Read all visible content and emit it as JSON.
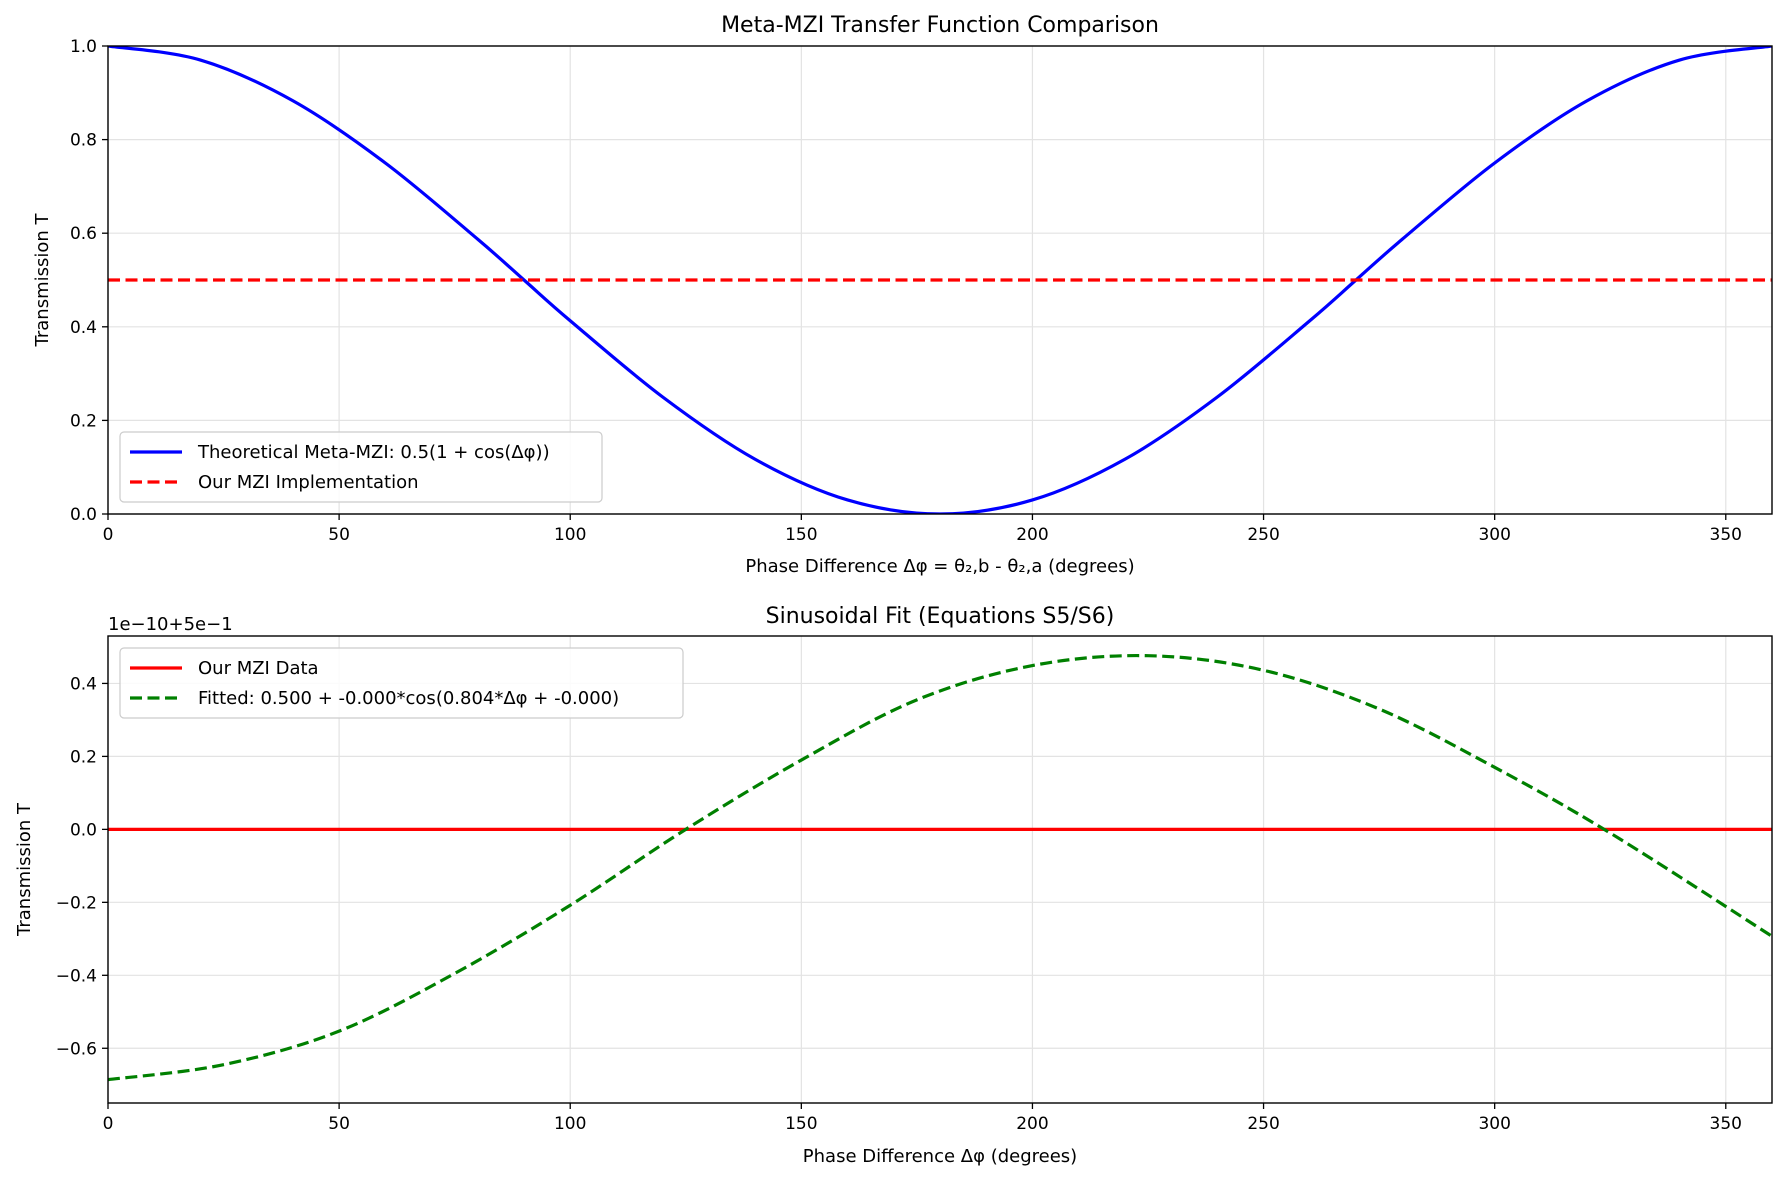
{
  "chart_data": [
    {
      "type": "line",
      "title": "Meta-MZI Transfer Function Comparison",
      "xlabel": "Phase Difference Δφ = θ₂,b - θ₂,a (degrees)",
      "ylabel": "Transmission T",
      "xlim": [
        0,
        360
      ],
      "ylim": [
        0,
        1
      ],
      "xticks": [
        0,
        50,
        100,
        150,
        200,
        250,
        300,
        350
      ],
      "yticks": [
        0.0,
        0.2,
        0.4,
        0.6,
        0.8,
        1.0
      ],
      "ytick_labels": [
        "0.0",
        "0.2",
        "0.4",
        "0.6",
        "0.8",
        "1.0"
      ],
      "grid": true,
      "legend": "lower-left",
      "series": [
        {
          "name": "Theoretical Meta-MZI: 0.5(1 + cos(Δφ))",
          "color": "#0000ff",
          "style": "solid",
          "x": [
            0,
            20,
            40,
            60,
            80,
            90,
            100,
            120,
            140,
            160,
            180,
            200,
            220,
            240,
            260,
            270,
            280,
            300,
            320,
            340,
            360
          ],
          "y": [
            1.0,
            0.97,
            0.883,
            0.75,
            0.587,
            0.5,
            0.413,
            0.25,
            0.117,
            0.03,
            0.0,
            0.03,
            0.117,
            0.25,
            0.413,
            0.5,
            0.587,
            0.75,
            0.883,
            0.97,
            1.0
          ]
        },
        {
          "name": "Our MZI Implementation",
          "color": "#ff0000",
          "style": "dashed",
          "x": [
            0,
            360
          ],
          "y": [
            0.5,
            0.5
          ]
        }
      ]
    },
    {
      "type": "line",
      "title": "Sinusoidal Fit (Equations S5/S6)",
      "xlabel": "Phase Difference Δφ (degrees)",
      "ylabel": "Transmission T",
      "offset_label": "1e−10+5e−1",
      "xlim": [
        0,
        360
      ],
      "ylim": [
        -0.75,
        0.53
      ],
      "xticks": [
        0,
        50,
        100,
        150,
        200,
        250,
        300,
        350
      ],
      "yticks": [
        -0.6,
        -0.4,
        -0.2,
        0.0,
        0.2,
        0.4
      ],
      "ytick_labels": [
        "−0.6",
        "−0.4",
        "−0.2",
        "0.0",
        "0.2",
        "0.4"
      ],
      "grid": true,
      "legend": "upper-left",
      "series": [
        {
          "name": "Our MZI Data",
          "color": "#ff0000",
          "style": "solid",
          "x": [
            0,
            360
          ],
          "y": [
            0.0,
            0.0
          ]
        },
        {
          "name": "Fitted: 0.500 + -0.000*cos(0.804*Δφ + -0.000)",
          "color": "#008000",
          "style": "dashed",
          "x": [
            0,
            25,
            50,
            75,
            100,
            125,
            150,
            175,
            200,
            225,
            250,
            275,
            300,
            325,
            360
          ],
          "y": [
            -0.686,
            -0.645,
            -0.553,
            -0.395,
            -0.208,
            0.0,
            0.19,
            0.355,
            0.449,
            0.476,
            0.436,
            0.33,
            0.17,
            -0.01,
            -0.293
          ]
        }
      ]
    }
  ]
}
